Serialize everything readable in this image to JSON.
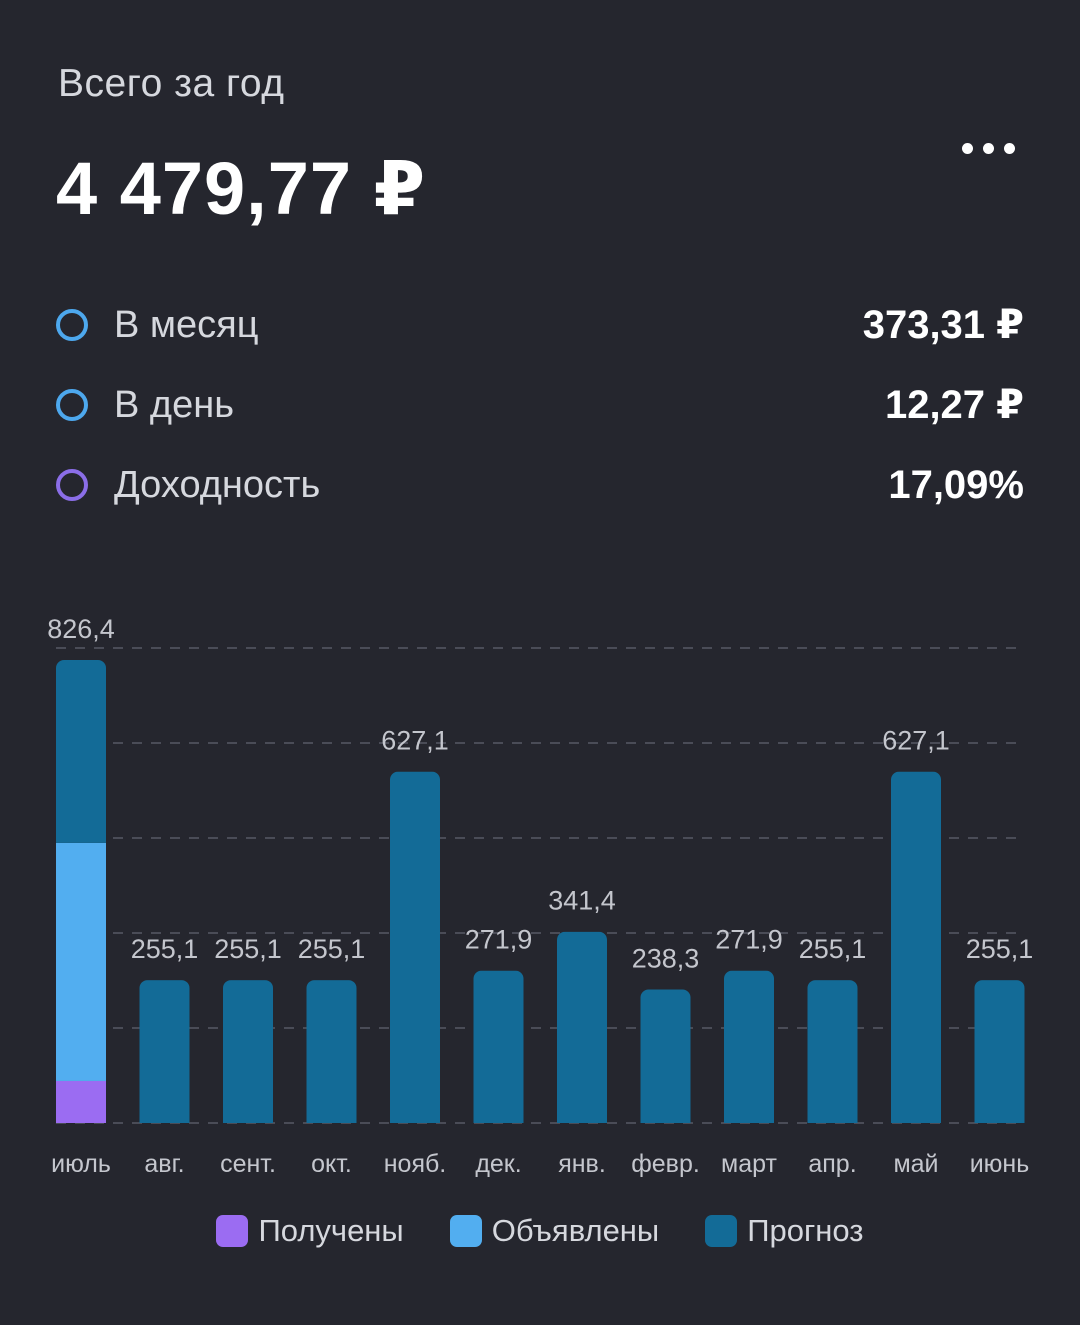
{
  "header": {
    "subtitle": "Всего за год",
    "total": "4 479,77 ₽",
    "more_icon": "more-horizontal-icon"
  },
  "stats": [
    {
      "label": "В месяц",
      "value": "373,31 ₽",
      "ring_color": "#4da8ee"
    },
    {
      "label": "В день",
      "value": "12,27 ₽",
      "ring_color": "#4da8ee"
    },
    {
      "label": "Доходность",
      "value": "17,09%",
      "ring_color": "#8b6ee8"
    }
  ],
  "chart_data": {
    "type": "bar",
    "stacked": true,
    "grid": true,
    "legend_position": "bottom",
    "categories": [
      "июль",
      "авг.",
      "сент.",
      "окт.",
      "нояб.",
      "дек.",
      "янв.",
      "февр.",
      "март",
      "апр.",
      "май",
      "июнь"
    ],
    "totals_labels": [
      "826,4",
      "255,1",
      "255,1",
      "255,1",
      "627,1",
      "271,9",
      "341,4",
      "238,3",
      "271,9",
      "255,1",
      "627,1",
      "255,1"
    ],
    "ylim": [
      0,
      826.4
    ],
    "series": [
      {
        "name": "Получены",
        "color": "#9b6cf2",
        "values": [
          75,
          0,
          0,
          0,
          0,
          0,
          0,
          0,
          0,
          0,
          0,
          0
        ]
      },
      {
        "name": "Объявлены",
        "color": "#52aef0",
        "values": [
          425,
          0,
          0,
          0,
          0,
          0,
          0,
          0,
          0,
          0,
          0,
          0
        ]
      },
      {
        "name": "Прогноз",
        "color": "#136b97",
        "values": [
          326.4,
          255.1,
          255.1,
          255.1,
          627.1,
          271.9,
          341.4,
          238.3,
          271.9,
          255.1,
          627.1,
          255.1
        ]
      }
    ]
  }
}
